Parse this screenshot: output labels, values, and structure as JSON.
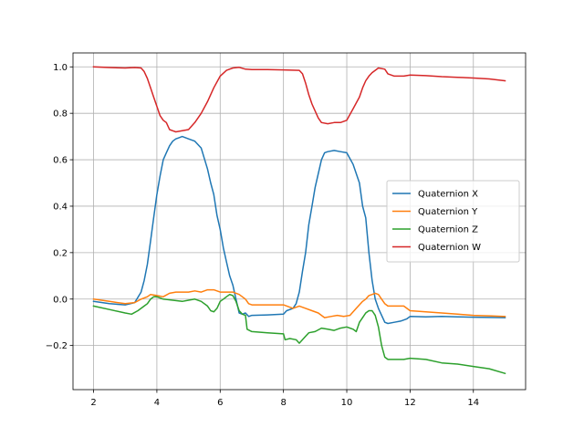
{
  "chart_data": {
    "type": "line",
    "title": "",
    "xlabel": "",
    "ylabel": "",
    "xlim": [
      1.35,
      15.65
    ],
    "ylim": [
      -0.39,
      1.06
    ],
    "grid": true,
    "legend_position": "center-right",
    "x_ticks": [
      2,
      4,
      6,
      8,
      10,
      12,
      14
    ],
    "x_tick_labels": [
      "2",
      "4",
      "6",
      "8",
      "10",
      "12",
      "14"
    ],
    "y_ticks": [
      -0.2,
      0.0,
      0.2,
      0.4,
      0.6,
      0.8,
      1.0
    ],
    "y_tick_labels": [
      "−0.2",
      "0.0",
      "0.2",
      "0.4",
      "0.6",
      "0.8",
      "1.0"
    ],
    "series": [
      {
        "name": "Quaternion X",
        "color": "#1f77b4",
        "points": [
          [
            2.0,
            -0.01
          ],
          [
            2.5,
            -0.02
          ],
          [
            3.0,
            -0.025
          ],
          [
            3.3,
            -0.015
          ],
          [
            3.5,
            0.03
          ],
          [
            3.6,
            0.08
          ],
          [
            3.7,
            0.15
          ],
          [
            3.8,
            0.25
          ],
          [
            3.9,
            0.35
          ],
          [
            4.0,
            0.45
          ],
          [
            4.1,
            0.53
          ],
          [
            4.2,
            0.6
          ],
          [
            4.3,
            0.63
          ],
          [
            4.4,
            0.66
          ],
          [
            4.5,
            0.68
          ],
          [
            4.6,
            0.69
          ],
          [
            4.7,
            0.695
          ],
          [
            4.8,
            0.7
          ],
          [
            5.0,
            0.69
          ],
          [
            5.2,
            0.68
          ],
          [
            5.4,
            0.65
          ],
          [
            5.6,
            0.56
          ],
          [
            5.7,
            0.5
          ],
          [
            5.8,
            0.45
          ],
          [
            5.9,
            0.36
          ],
          [
            6.0,
            0.3
          ],
          [
            6.1,
            0.22
          ],
          [
            6.2,
            0.16
          ],
          [
            6.3,
            0.1
          ],
          [
            6.4,
            0.06
          ],
          [
            6.5,
            0.0
          ],
          [
            6.6,
            -0.06
          ],
          [
            6.7,
            -0.065
          ],
          [
            6.8,
            -0.06
          ],
          [
            6.9,
            -0.075
          ],
          [
            7.0,
            -0.07
          ],
          [
            7.5,
            -0.068
          ],
          [
            8.0,
            -0.065
          ],
          [
            8.1,
            -0.05
          ],
          [
            8.3,
            -0.04
          ],
          [
            8.4,
            -0.02
          ],
          [
            8.5,
            0.03
          ],
          [
            8.6,
            0.12
          ],
          [
            8.7,
            0.2
          ],
          [
            8.8,
            0.32
          ],
          [
            8.9,
            0.4
          ],
          [
            9.0,
            0.48
          ],
          [
            9.1,
            0.54
          ],
          [
            9.2,
            0.6
          ],
          [
            9.3,
            0.63
          ],
          [
            9.4,
            0.635
          ],
          [
            9.6,
            0.64
          ],
          [
            9.8,
            0.635
          ],
          [
            10.0,
            0.63
          ],
          [
            10.2,
            0.58
          ],
          [
            10.4,
            0.5
          ],
          [
            10.5,
            0.4
          ],
          [
            10.6,
            0.35
          ],
          [
            10.7,
            0.2
          ],
          [
            10.8,
            0.08
          ],
          [
            10.9,
            0.0
          ],
          [
            11.0,
            -0.04
          ],
          [
            11.1,
            -0.07
          ],
          [
            11.2,
            -0.1
          ],
          [
            11.3,
            -0.105
          ],
          [
            11.5,
            -0.1
          ],
          [
            11.7,
            -0.095
          ],
          [
            11.9,
            -0.085
          ],
          [
            12.0,
            -0.075
          ],
          [
            12.5,
            -0.077
          ],
          [
            13.0,
            -0.075
          ],
          [
            13.5,
            -0.077
          ],
          [
            14.0,
            -0.078
          ],
          [
            14.5,
            -0.079
          ],
          [
            15.0,
            -0.08
          ]
        ]
      },
      {
        "name": "Quaternion Y",
        "color": "#ff7f0e",
        "points": [
          [
            2.0,
            0.0
          ],
          [
            2.5,
            -0.01
          ],
          [
            3.0,
            -0.02
          ],
          [
            3.3,
            -0.015
          ],
          [
            3.5,
            0.0
          ],
          [
            3.7,
            0.01
          ],
          [
            3.8,
            0.02
          ],
          [
            4.0,
            0.015
          ],
          [
            4.2,
            0.01
          ],
          [
            4.4,
            0.025
          ],
          [
            4.6,
            0.03
          ],
          [
            5.0,
            0.03
          ],
          [
            5.2,
            0.035
          ],
          [
            5.4,
            0.03
          ],
          [
            5.6,
            0.04
          ],
          [
            5.8,
            0.04
          ],
          [
            6.0,
            0.03
          ],
          [
            6.2,
            0.03
          ],
          [
            6.4,
            0.03
          ],
          [
            6.6,
            0.02
          ],
          [
            6.8,
            0.0
          ],
          [
            6.9,
            -0.02
          ],
          [
            7.0,
            -0.025
          ],
          [
            7.5,
            -0.025
          ],
          [
            8.0,
            -0.025
          ],
          [
            8.3,
            -0.04
          ],
          [
            8.5,
            -0.03
          ],
          [
            8.7,
            -0.04
          ],
          [
            8.9,
            -0.05
          ],
          [
            9.1,
            -0.06
          ],
          [
            9.2,
            -0.07
          ],
          [
            9.3,
            -0.08
          ],
          [
            9.5,
            -0.075
          ],
          [
            9.7,
            -0.07
          ],
          [
            9.9,
            -0.075
          ],
          [
            10.1,
            -0.07
          ],
          [
            10.3,
            -0.04
          ],
          [
            10.5,
            -0.01
          ],
          [
            10.6,
            0.0
          ],
          [
            10.7,
            0.015
          ],
          [
            10.8,
            0.02
          ],
          [
            10.9,
            0.025
          ],
          [
            11.0,
            0.02
          ],
          [
            11.1,
            0.0
          ],
          [
            11.2,
            -0.02
          ],
          [
            11.3,
            -0.03
          ],
          [
            11.5,
            -0.03
          ],
          [
            11.8,
            -0.03
          ],
          [
            12.0,
            -0.05
          ],
          [
            12.5,
            -0.055
          ],
          [
            13.0,
            -0.06
          ],
          [
            13.5,
            -0.065
          ],
          [
            14.0,
            -0.07
          ],
          [
            14.5,
            -0.072
          ],
          [
            15.0,
            -0.075
          ]
        ]
      },
      {
        "name": "Quaternion Z",
        "color": "#2ca02c",
        "points": [
          [
            2.0,
            -0.03
          ],
          [
            2.5,
            -0.045
          ],
          [
            3.0,
            -0.06
          ],
          [
            3.2,
            -0.065
          ],
          [
            3.4,
            -0.05
          ],
          [
            3.6,
            -0.03
          ],
          [
            3.7,
            -0.02
          ],
          [
            3.8,
            0.0
          ],
          [
            3.9,
            0.01
          ],
          [
            4.0,
            0.01
          ],
          [
            4.2,
            0.0
          ],
          [
            4.5,
            -0.005
          ],
          [
            4.8,
            -0.01
          ],
          [
            5.0,
            -0.005
          ],
          [
            5.2,
            0.0
          ],
          [
            5.4,
            -0.01
          ],
          [
            5.6,
            -0.03
          ],
          [
            5.7,
            -0.05
          ],
          [
            5.8,
            -0.055
          ],
          [
            5.9,
            -0.04
          ],
          [
            6.0,
            -0.01
          ],
          [
            6.1,
            0.0
          ],
          [
            6.2,
            0.01
          ],
          [
            6.3,
            0.02
          ],
          [
            6.4,
            0.015
          ],
          [
            6.5,
            -0.01
          ],
          [
            6.6,
            -0.05
          ],
          [
            6.7,
            -0.065
          ],
          [
            6.8,
            -0.07
          ],
          [
            6.85,
            -0.13
          ],
          [
            7.0,
            -0.14
          ],
          [
            7.5,
            -0.145
          ],
          [
            8.0,
            -0.15
          ],
          [
            8.05,
            -0.175
          ],
          [
            8.2,
            -0.17
          ],
          [
            8.4,
            -0.175
          ],
          [
            8.5,
            -0.19
          ],
          [
            8.6,
            -0.175
          ],
          [
            8.7,
            -0.16
          ],
          [
            8.8,
            -0.145
          ],
          [
            9.0,
            -0.14
          ],
          [
            9.2,
            -0.125
          ],
          [
            9.4,
            -0.13
          ],
          [
            9.6,
            -0.135
          ],
          [
            9.8,
            -0.125
          ],
          [
            10.0,
            -0.12
          ],
          [
            10.2,
            -0.13
          ],
          [
            10.3,
            -0.14
          ],
          [
            10.4,
            -0.1
          ],
          [
            10.5,
            -0.08
          ],
          [
            10.6,
            -0.06
          ],
          [
            10.7,
            -0.05
          ],
          [
            10.8,
            -0.05
          ],
          [
            10.9,
            -0.07
          ],
          [
            11.0,
            -0.12
          ],
          [
            11.1,
            -0.2
          ],
          [
            11.2,
            -0.25
          ],
          [
            11.3,
            -0.26
          ],
          [
            11.5,
            -0.26
          ],
          [
            11.8,
            -0.26
          ],
          [
            12.0,
            -0.255
          ],
          [
            12.5,
            -0.26
          ],
          [
            13.0,
            -0.275
          ],
          [
            13.5,
            -0.28
          ],
          [
            14.0,
            -0.29
          ],
          [
            14.5,
            -0.3
          ],
          [
            15.0,
            -0.32
          ]
        ]
      },
      {
        "name": "Quaternion W",
        "color": "#d62728",
        "points": [
          [
            2.0,
            1.0
          ],
          [
            2.5,
            0.997
          ],
          [
            3.0,
            0.995
          ],
          [
            3.3,
            0.997
          ],
          [
            3.5,
            0.995
          ],
          [
            3.6,
            0.98
          ],
          [
            3.7,
            0.95
          ],
          [
            3.8,
            0.91
          ],
          [
            3.9,
            0.87
          ],
          [
            4.0,
            0.83
          ],
          [
            4.1,
            0.79
          ],
          [
            4.2,
            0.77
          ],
          [
            4.3,
            0.76
          ],
          [
            4.4,
            0.73
          ],
          [
            4.5,
            0.725
          ],
          [
            4.6,
            0.72
          ],
          [
            4.8,
            0.725
          ],
          [
            5.0,
            0.73
          ],
          [
            5.2,
            0.76
          ],
          [
            5.4,
            0.8
          ],
          [
            5.6,
            0.85
          ],
          [
            5.8,
            0.91
          ],
          [
            6.0,
            0.96
          ],
          [
            6.2,
            0.985
          ],
          [
            6.4,
            0.995
          ],
          [
            6.6,
            0.998
          ],
          [
            6.8,
            0.99
          ],
          [
            7.0,
            0.988
          ],
          [
            7.5,
            0.988
          ],
          [
            8.0,
            0.987
          ],
          [
            8.5,
            0.985
          ],
          [
            8.6,
            0.97
          ],
          [
            8.7,
            0.93
          ],
          [
            8.8,
            0.88
          ],
          [
            8.9,
            0.84
          ],
          [
            9.0,
            0.81
          ],
          [
            9.1,
            0.78
          ],
          [
            9.2,
            0.76
          ],
          [
            9.4,
            0.755
          ],
          [
            9.6,
            0.76
          ],
          [
            9.8,
            0.76
          ],
          [
            10.0,
            0.77
          ],
          [
            10.2,
            0.82
          ],
          [
            10.4,
            0.87
          ],
          [
            10.5,
            0.91
          ],
          [
            10.6,
            0.94
          ],
          [
            10.7,
            0.96
          ],
          [
            10.8,
            0.975
          ],
          [
            10.9,
            0.985
          ],
          [
            11.0,
            0.995
          ],
          [
            11.2,
            0.99
          ],
          [
            11.3,
            0.97
          ],
          [
            11.5,
            0.96
          ],
          [
            11.8,
            0.96
          ],
          [
            12.0,
            0.965
          ],
          [
            12.5,
            0.962
          ],
          [
            13.0,
            0.958
          ],
          [
            13.5,
            0.955
          ],
          [
            14.0,
            0.952
          ],
          [
            14.5,
            0.948
          ],
          [
            15.0,
            0.94
          ]
        ]
      }
    ]
  }
}
